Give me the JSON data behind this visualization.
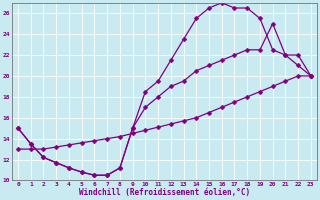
{
  "xlabel": "Windchill (Refroidissement éolien,°C)",
  "bg_color": "#c8eaf0",
  "line_color": "#800080",
  "xlim": [
    -0.5,
    23.5
  ],
  "ylim": [
    10,
    27
  ],
  "xticks": [
    0,
    1,
    2,
    3,
    4,
    5,
    6,
    7,
    8,
    9,
    10,
    11,
    12,
    13,
    14,
    15,
    16,
    17,
    18,
    19,
    20,
    21,
    22,
    23
  ],
  "yticks": [
    10,
    12,
    14,
    16,
    18,
    20,
    22,
    24,
    26
  ],
  "line1_x": [
    0,
    1,
    2,
    3,
    4,
    5,
    6,
    7,
    8,
    9,
    10,
    11,
    12,
    13,
    14,
    15,
    16,
    17,
    18,
    19,
    20,
    21,
    22,
    23
  ],
  "line1_y": [
    15.0,
    13.5,
    12.2,
    11.7,
    11.2,
    10.8,
    10.5,
    10.5,
    11.2,
    15.0,
    18.5,
    19.5,
    21.5,
    23.5,
    25.5,
    26.5,
    27.0,
    26.5,
    26.5,
    25.5,
    22.5,
    22.0,
    21.0,
    20.0
  ],
  "line2_x": [
    0,
    1,
    2,
    3,
    4,
    5,
    6,
    7,
    8,
    9,
    10,
    11,
    12,
    13,
    14,
    15,
    16,
    17,
    18,
    19,
    20,
    21,
    22,
    23
  ],
  "line2_y": [
    15.0,
    13.5,
    12.2,
    11.7,
    11.2,
    10.8,
    10.5,
    10.5,
    11.2,
    15.0,
    17.0,
    18.0,
    19.0,
    19.5,
    20.5,
    21.0,
    21.5,
    22.0,
    22.5,
    22.5,
    25.0,
    22.0,
    22.0,
    20.0
  ],
  "line3_x": [
    0,
    1,
    2,
    3,
    4,
    5,
    6,
    7,
    8,
    9,
    10,
    11,
    12,
    13,
    14,
    15,
    16,
    17,
    18,
    19,
    20,
    21,
    22,
    23
  ],
  "line3_y": [
    13.0,
    13.0,
    13.0,
    13.2,
    13.4,
    13.6,
    13.8,
    14.0,
    14.2,
    14.5,
    14.8,
    15.1,
    15.4,
    15.7,
    16.0,
    16.5,
    17.0,
    17.5,
    18.0,
    18.5,
    19.0,
    19.5,
    20.0,
    20.0
  ]
}
